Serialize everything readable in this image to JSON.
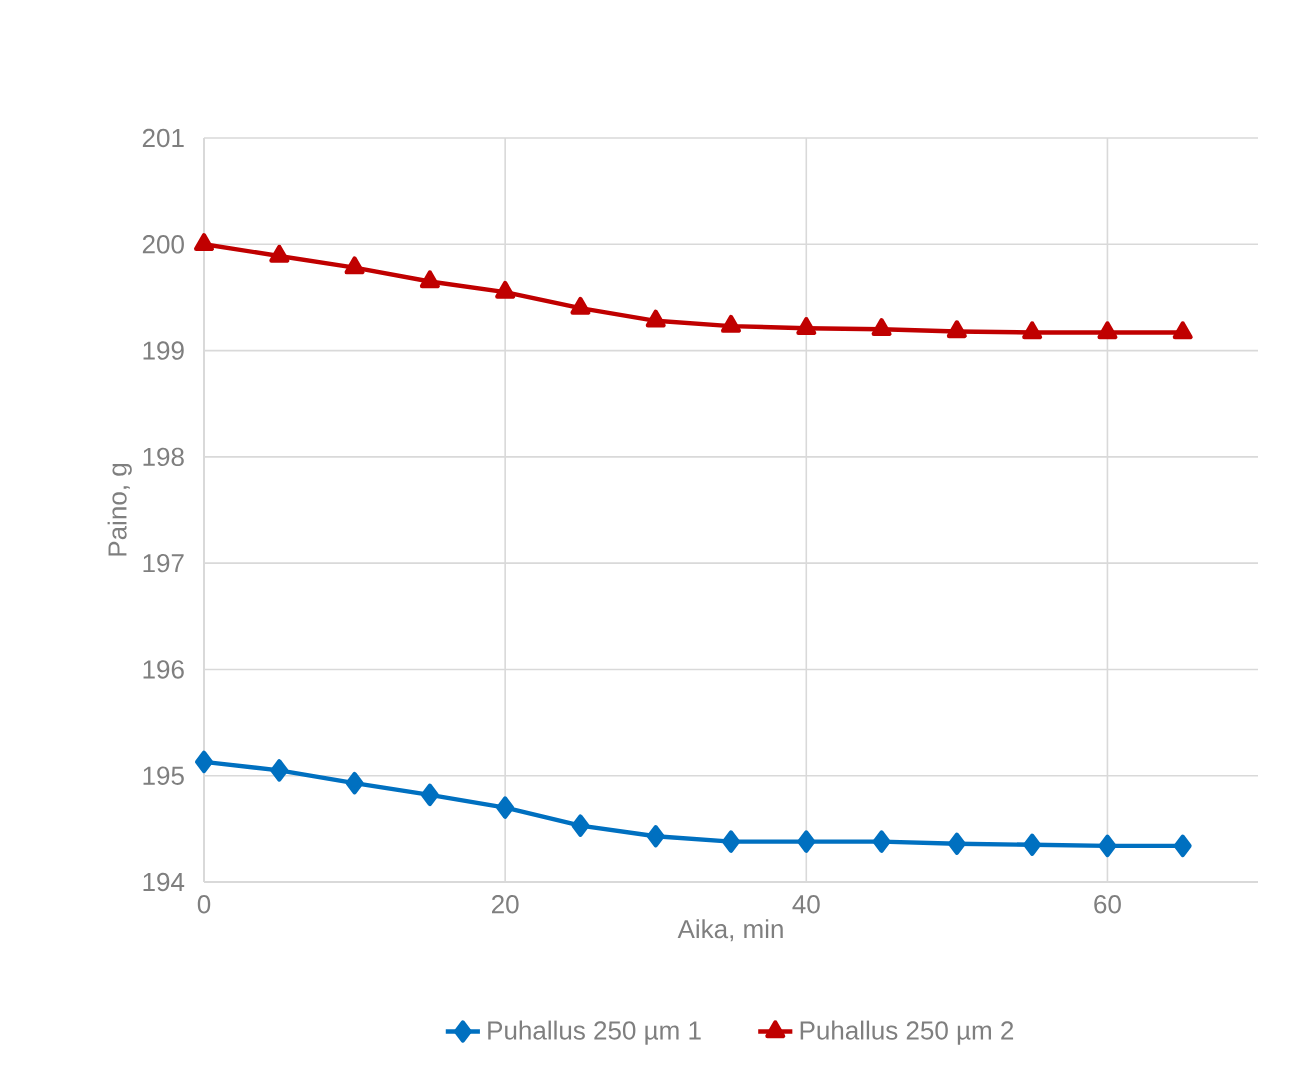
{
  "chart_data": {
    "type": "line",
    "xlabel": "Aika, min",
    "ylabel": "Paino, g",
    "x": [
      0,
      5,
      10,
      15,
      20,
      25,
      30,
      35,
      40,
      45,
      50,
      55,
      60,
      65
    ],
    "series": [
      {
        "name": "Puhallus 250 µm 1",
        "color": "#0070c0",
        "marker": "diamond",
        "values": [
          195.13,
          195.05,
          194.93,
          194.82,
          194.7,
          194.53,
          194.43,
          194.38,
          194.38,
          194.38,
          194.36,
          194.35,
          194.34,
          194.34
        ]
      },
      {
        "name": "Puhallus 250 µm 2",
        "color": "#c00000",
        "marker": "triangle",
        "values": [
          200.0,
          199.89,
          199.78,
          199.65,
          199.55,
          199.4,
          199.28,
          199.23,
          199.21,
          199.2,
          199.18,
          199.17,
          199.17,
          199.17
        ]
      }
    ],
    "xlim": [
      0,
      70
    ],
    "xticks": [
      0,
      20,
      40,
      60
    ],
    "ylim": [
      194,
      201
    ],
    "yticks": [
      194,
      195,
      196,
      197,
      198,
      199,
      200,
      201
    ],
    "grid": true,
    "legend": "bottom",
    "line_style": "solid"
  }
}
